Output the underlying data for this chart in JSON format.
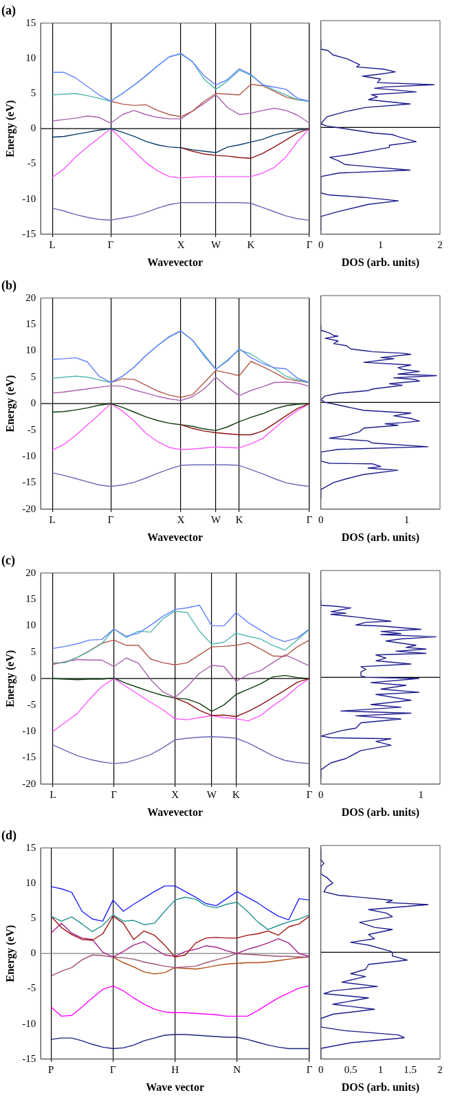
{
  "chart_data": [
    {
      "type": "line",
      "title": "(a)",
      "xlabel": "Wavevector",
      "ylabel": "Energy (eV)",
      "categories": [
        null,
        "L",
        null,
        null,
        null,
        null,
        "Γ",
        null,
        null,
        null,
        null,
        null,
        "X",
        null,
        null,
        "W",
        null,
        null,
        "K",
        null,
        null,
        null,
        null,
        "Γ"
      ],
      "ylim": [
        -15,
        15
      ],
      "yticks": [
        -15,
        -10,
        -5,
        0,
        5,
        10,
        15
      ],
      "grid": "x",
      "marker": "none",
      "ref_lines": [
        {
          "axis": "y",
          "value": 0,
          "color": "#000000"
        }
      ],
      "series": [
        {
          "color": "#6080ff",
          "values": [
            null,
            8.0,
            8.0,
            7.2,
            6.0,
            4.8,
            3.9,
            5.0,
            6.2,
            7.5,
            8.9,
            10.2,
            10.7,
            9.5,
            7.5,
            6.2,
            7.0,
            8.5,
            7.7,
            6.2,
            5.9,
            5.6,
            4.3,
            3.9
          ]
        },
        {
          "color": "#50b8b0",
          "values": [
            null,
            4.8,
            4.9,
            5.0,
            4.7,
            4.3,
            3.9,
            5.0,
            6.2,
            7.5,
            8.9,
            10.2,
            10.6,
            9.5,
            7.0,
            5.6,
            6.8,
            8.3,
            7.6,
            6.3,
            5.5,
            4.8,
            4.1,
            3.9
          ]
        },
        {
          "color": "#b05848",
          "values": [
            null,
            null,
            null,
            null,
            null,
            null,
            3.9,
            3.5,
            3.3,
            3.4,
            2.6,
            2.0,
            1.7,
            2.5,
            3.9,
            5.0,
            4.9,
            4.8,
            6.3,
            6.1,
            5.3,
            4.5,
            4.1,
            3.9
          ]
        },
        {
          "color": "#a860b0",
          "values": [
            null,
            1.1,
            1.3,
            1.5,
            1.8,
            1.6,
            0.8,
            2.0,
            2.6,
            2.0,
            1.6,
            1.4,
            1.4,
            2.5,
            3.6,
            4.8,
            3.0,
            2.0,
            2.2,
            2.6,
            2.9,
            2.6,
            1.9,
            0.8
          ]
        },
        {
          "color": "#8b1010",
          "values": [
            null,
            null,
            null,
            null,
            null,
            null,
            null,
            null,
            null,
            null,
            null,
            null,
            -2.7,
            -3.2,
            -3.6,
            -3.8,
            -3.9,
            -4.1,
            -4.2,
            -3.5,
            -2.6,
            -1.6,
            -0.6,
            0
          ]
        },
        {
          "color": "#0a3a66",
          "values": [
            null,
            -1.2,
            -1.1,
            -0.8,
            -0.5,
            -0.2,
            0,
            -0.5,
            -1.1,
            -1.8,
            -2.3,
            -2.6,
            -2.7,
            -3.0,
            -3.2,
            -3.4,
            -2.6,
            -2.3,
            -1.9,
            -1.5,
            -0.9,
            -0.5,
            -0.2,
            0
          ]
        },
        {
          "color": "#ff55ff",
          "values": [
            null,
            -6.9,
            -5.7,
            -4.0,
            -2.6,
            -1.3,
            0,
            -1.6,
            -3.2,
            -4.8,
            -6.0,
            -6.8,
            -7.0,
            -6.9,
            -6.8,
            -6.8,
            -6.8,
            -6.8,
            -6.8,
            -6.3,
            -5.5,
            -4.0,
            -1.8,
            0
          ]
        },
        {
          "color": "#6868b8",
          "values": [
            null,
            -11.3,
            -11.7,
            -12.2,
            -12.6,
            -12.9,
            -13.0,
            -12.7,
            -12.4,
            -11.9,
            -11.3,
            -10.8,
            -10.5,
            -10.5,
            -10.5,
            -10.5,
            -10.5,
            -10.5,
            -10.6,
            -11.2,
            -11.8,
            -12.4,
            -12.8,
            -13.0
          ]
        }
      ]
    },
    {
      "type": "line",
      "xlabel": "DOS (arb. units)",
      "xlim": [
        0,
        2
      ],
      "xticks": [
        0,
        1,
        2
      ],
      "ylim": [
        -15,
        15
      ],
      "tick_labels": "x",
      "marker": "none",
      "ref_lines": [
        {
          "axis": "y",
          "value": 0,
          "color": "#000000"
        }
      ],
      "series": [
        {
          "color": "#1a1a8c",
          "x": [
            0,
            0,
            0.12,
            0.2,
            0.45,
            0.65,
            0.6,
            1.05,
            1.25,
            1.0,
            0.7,
            1.0,
            0.95,
            1.9,
            1.1,
            0.9,
            1.6,
            0.85,
            0.95,
            0.8,
            1.5,
            0.75,
            0.4,
            0.1,
            0,
            0.1,
            0.5,
            0.9,
            1.2,
            1.3,
            1.6,
            1.15,
            1.15,
            0.5,
            0.15,
            0.3,
            0.4,
            0.8,
            1.5,
            0.3,
            0,
            0,
            0.15,
            0.7,
            1.3,
            0.8,
            0.3,
            0,
            0
          ],
          "values": [
            12.2,
            11,
            10.8,
            10.2,
            9.6,
            8.8,
            8.5,
            8.2,
            7.8,
            7.5,
            7.2,
            6.8,
            6.3,
            6.0,
            5.7,
            5.5,
            5.0,
            4.6,
            4.3,
            3.9,
            3.3,
            2.8,
            2.2,
            1.5,
            0.5,
            0.2,
            -0.3,
            -0.8,
            -1.0,
            -1.3,
            -2.0,
            -2.5,
            -2.8,
            -3.8,
            -4.2,
            -4.7,
            -5.2,
            -5.5,
            -6.0,
            -6.4,
            -6.9,
            -9.2,
            -9.5,
            -9.8,
            -10.3,
            -10.8,
            -11.8,
            -12.5,
            -14.5
          ]
        }
      ]
    },
    {
      "type": "line",
      "title": "(b)",
      "xlabel": "Wavevector",
      "ylabel": "Energy (eV)",
      "categories": [
        null,
        "L",
        null,
        null,
        null,
        null,
        "Γ",
        null,
        null,
        null,
        null,
        null,
        "X",
        null,
        null,
        "W",
        null,
        "K",
        null,
        null,
        null,
        null,
        null,
        "Γ"
      ],
      "ylim": [
        -20,
        20
      ],
      "yticks": [
        -20,
        -15,
        -10,
        -5,
        0,
        5,
        10,
        15,
        20
      ],
      "grid": "x",
      "marker": "none",
      "ref_lines": [
        {
          "axis": "y",
          "value": 0,
          "color": "#000000"
        }
      ],
      "series": [
        {
          "color": "#6080ff",
          "values": [
            null,
            8.4,
            8.5,
            8.7,
            7.9,
            5.2,
            4.0,
            5.2,
            6.9,
            9.1,
            11.0,
            12.7,
            13.8,
            12.0,
            9.0,
            6.5,
            8.1,
            10.4,
            8.7,
            7.6,
            6.8,
            6.6,
            4.8,
            4.0
          ]
        },
        {
          "color": "#50b8b0",
          "values": [
            null,
            4.8,
            5.0,
            5.2,
            5.0,
            4.5,
            4.0,
            5.2,
            6.9,
            9.1,
            11.0,
            12.6,
            13.7,
            12.0,
            9.3,
            6.5,
            8.3,
            10.2,
            9.4,
            8.0,
            6.7,
            5.2,
            4.5,
            4.0
          ]
        },
        {
          "color": "#b05848",
          "values": [
            null,
            null,
            null,
            null,
            null,
            null,
            4.0,
            4.7,
            4.6,
            3.5,
            2.4,
            1.6,
            1.2,
            1.7,
            4.0,
            6.3,
            5.8,
            5.3,
            8.0,
            7.0,
            5.9,
            4.7,
            4.3,
            4.0
          ]
        },
        {
          "color": "#a860b0",
          "values": [
            null,
            2.0,
            2.2,
            2.5,
            2.8,
            3.1,
            3.4,
            3.3,
            2.6,
            2.0,
            1.4,
            0.9,
            0.6,
            1.3,
            2.8,
            5.0,
            3.1,
            1.5,
            2.5,
            3.2,
            4.0,
            4.1,
            3.9,
            3.3
          ]
        },
        {
          "color": "#8b1010",
          "values": [
            null,
            null,
            null,
            null,
            null,
            null,
            null,
            null,
            null,
            null,
            null,
            null,
            -4.0,
            -4.7,
            -5.2,
            -5.5,
            -5.7,
            -5.9,
            -5.9,
            -5.2,
            -3.8,
            -2.3,
            -0.9,
            0
          ]
        },
        {
          "color": "#0a3a0a",
          "values": [
            null,
            -1.6,
            -1.5,
            -1.2,
            -0.8,
            -0.3,
            0,
            -0.7,
            -1.6,
            -2.5,
            -3.2,
            -3.7,
            -4.0,
            -4.3,
            -4.8,
            -5.1,
            -4.4,
            -3.4,
            -2.6,
            -1.9,
            -1.0,
            -0.4,
            -0.1,
            0
          ]
        },
        {
          "color": "#ff55ff",
          "values": [
            null,
            -8.8,
            -7.7,
            -6.0,
            -4.0,
            -2.1,
            0,
            -1.4,
            -3.3,
            -5.6,
            -7.2,
            -8.3,
            -8.7,
            -8.6,
            -8.4,
            -8.2,
            -8.3,
            -8.4,
            -7.6,
            -6.6,
            -4.7,
            -2.8,
            -1.3,
            0
          ]
        },
        {
          "color": "#6868b8",
          "values": [
            null,
            -13.1,
            -13.6,
            -14.2,
            -14.8,
            -15.4,
            -15.7,
            -15.4,
            -14.9,
            -14.1,
            -13.2,
            -12.4,
            -11.7,
            -11.6,
            -11.6,
            -11.6,
            -11.6,
            -11.7,
            -12.5,
            -13.3,
            -14.2,
            -15.0,
            -15.4,
            -15.7
          ]
        }
      ]
    },
    {
      "type": "line",
      "xlabel": "DOS (arb. units)",
      "xlim": [
        0,
        1.39
      ],
      "xticks": [
        0,
        1
      ],
      "ylim": [
        -20,
        20
      ],
      "tick_labels": "x",
      "marker": "none",
      "ref_lines": [
        {
          "axis": "y",
          "value": 0,
          "color": "#000000"
        }
      ],
      "series": [
        {
          "color": "#1a1a8c",
          "x": [
            0,
            0,
            0.1,
            0.15,
            0.2,
            0.05,
            0.2,
            0.15,
            0.3,
            0.35,
            0.5,
            0.6,
            0.95,
            1.05,
            0.7,
            0.85,
            0.5,
            1.05,
            0.9,
            0.95,
            1.15,
            0.9,
            1.35,
            0.85,
            1.1,
            1.15,
            0.8,
            0.95,
            0.6,
            0.55,
            0.2,
            0.05,
            0,
            0.05,
            0.15,
            0.35,
            0.5,
            1.05,
            0.85,
            1.05,
            1.15,
            0.95,
            0.75,
            0.9,
            0.5,
            0.45,
            0.3,
            0.1,
            0.55,
            0.6,
            1.25,
            0.2,
            0,
            0,
            0.1,
            0.6,
            0.7,
            0.55,
            0.9,
            0.5,
            0.3,
            0.15,
            0,
            0
          ],
          "values": [
            14.5,
            13.5,
            13.0,
            12.5,
            12.4,
            12.0,
            11.5,
            11.0,
            10.6,
            10.0,
            9.7,
            9.5,
            9.2,
            9.0,
            8.4,
            8.2,
            7.5,
            7.0,
            6.5,
            6.2,
            5.8,
            5.3,
            5.0,
            4.6,
            4.3,
            4.0,
            3.5,
            3.2,
            2.5,
            2.2,
            1.7,
            1.2,
            0.5,
            0,
            -0.3,
            -1.0,
            -1.5,
            -2.0,
            -2.5,
            -3.0,
            -3.5,
            -3.8,
            -4.0,
            -4.3,
            -4.8,
            -5.5,
            -6.2,
            -6.7,
            -7.2,
            -7.6,
            -8.3,
            -8.8,
            -9.3,
            -11.0,
            -11.4,
            -11.5,
            -12.0,
            -12.3,
            -12.7,
            -13.5,
            -14.3,
            -15.0,
            -16.3,
            -18
          ]
        }
      ]
    },
    {
      "type": "line",
      "title": "(c)",
      "xlabel": "Wavevector",
      "ylabel": "Energy (eV)",
      "categories": [
        null,
        "L",
        null,
        null,
        null,
        null,
        "Γ",
        null,
        null,
        null,
        null,
        "X",
        null,
        null,
        "W",
        null,
        "K",
        null,
        null,
        null,
        null,
        null,
        "Γ"
      ],
      "ylim": [
        -20,
        20
      ],
      "yticks": [
        -20,
        -15,
        -10,
        -5,
        0,
        5,
        10,
        15,
        20
      ],
      "grid": "x",
      "marker": "none",
      "ref_lines": [
        {
          "axis": "y",
          "value": 0,
          "color": "#000000"
        }
      ],
      "series": [
        {
          "color": "#6080ff",
          "values": [
            null,
            5.7,
            6.1,
            6.6,
            7.3,
            7.4,
            9.4,
            8.0,
            8.6,
            10.1,
            11.8,
            13.1,
            13.4,
            13.9,
            10.0,
            10.0,
            12.5,
            10.6,
            9.2,
            7.8,
            7.0,
            7.7,
            9.4
          ]
        },
        {
          "color": "#50b8b0",
          "values": [
            null,
            3.0,
            3.0,
            4.0,
            5.2,
            6.6,
            9.4,
            7.8,
            9.0,
            8.8,
            11.3,
            12.8,
            12.5,
            9.0,
            6.5,
            6.9,
            8.6,
            8.0,
            7.5,
            6.3,
            5.4,
            7.3,
            9.3
          ]
        },
        {
          "color": "#b05848",
          "values": [
            null,
            2.8,
            3.1,
            4.0,
            5.3,
            6.7,
            7.3,
            6.3,
            6.3,
            3.7,
            3.0,
            2.6,
            3.0,
            4.5,
            6.0,
            6.1,
            6.3,
            6.8,
            5.6,
            4.3,
            4.2,
            6.0,
            7.3
          ]
        },
        {
          "color": "#a860b0",
          "values": [
            null,
            2.7,
            3.2,
            3.6,
            3.5,
            3.5,
            2.3,
            3.9,
            2.9,
            -0.2,
            -2.5,
            -3.6,
            -1.5,
            1.0,
            2.5,
            2.3,
            -0.5,
            0.8,
            1.5,
            3.0,
            4.5,
            3.5,
            2.4
          ]
        },
        {
          "color": "#8b1010",
          "values": [
            null,
            null,
            null,
            null,
            null,
            null,
            null,
            null,
            null,
            null,
            null,
            -3.7,
            -4.6,
            -6.0,
            -7.0,
            -6.9,
            -7.2,
            -6.2,
            -5.0,
            -3.6,
            -2.2,
            -0.7,
            0
          ]
        },
        {
          "color": "#0a3a0a",
          "values": [
            null,
            0,
            -0.1,
            -0.2,
            -0.1,
            -0.1,
            0.1,
            -0.9,
            -1.7,
            -2.5,
            -3.2,
            -3.7,
            -3.9,
            -4.7,
            -6.2,
            -5.0,
            -3.0,
            -2.0,
            -1.0,
            0.3,
            0.6,
            0.2,
            0
          ]
        },
        {
          "color": "#ff55ff",
          "values": [
            null,
            -10.0,
            -8.3,
            -6.6,
            -3.9,
            -1.5,
            0,
            -1.5,
            -3.0,
            -4.5,
            -5.9,
            -7.6,
            -7.8,
            -7.4,
            -7.0,
            -7.4,
            -7.6,
            -8.0,
            -7.0,
            -5.2,
            -3.6,
            -1.6,
            0
          ]
        },
        {
          "color": "#6868b8",
          "values": [
            null,
            -12.6,
            -13.6,
            -14.6,
            -15.3,
            -15.8,
            -16.1,
            -15.9,
            -15.2,
            -14.4,
            -13.1,
            -11.6,
            -11.3,
            -11.1,
            -11.0,
            -11.1,
            -11.3,
            -12.2,
            -13.4,
            -14.6,
            -15.5,
            -15.9,
            -16.1
          ]
        }
      ]
    },
    {
      "type": "line",
      "xlabel": "DOS (arb. units)",
      "xlim": [
        0,
        1.19
      ],
      "xticks": [
        0,
        1
      ],
      "ylim": [
        -20,
        20
      ],
      "tick_labels": "x",
      "marker": "none",
      "ref_lines": [
        {
          "axis": "y",
          "value": 0,
          "color": "#000000"
        }
      ],
      "series": [
        {
          "color": "#1a1a8c",
          "x": [
            0,
            0,
            0.15,
            0.3,
            0.1,
            0.25,
            0.1,
            0.35,
            0.7,
            0.45,
            0.35,
            0.6,
            1.0,
            0.6,
            0.8,
            0.6,
            1.15,
            0.8,
            0.65,
            0.95,
            0.85,
            1.05,
            0.75,
            1.05,
            0.55,
            0.65,
            0.55,
            0.9,
            0.4,
            0.45,
            0.4,
            0.4,
            0.45,
            0.98,
            0.5,
            0.85,
            0.6,
            0.98,
            0.55,
            0.9,
            0.5,
            0.8,
            0.2,
            0.9,
            0.35,
            0.8,
            0.4,
            0.35,
            0.2,
            0,
            0.1,
            0.7,
            0.55,
            0.7,
            0.4,
            0.25,
            0.1,
            0,
            0
          ],
          "values": [
            14.5,
            13.5,
            13.3,
            13.0,
            12.3,
            12.0,
            11.8,
            11.3,
            10.5,
            10.3,
            9.8,
            9.6,
            9.0,
            8.6,
            8.2,
            8.0,
            7.6,
            7.2,
            6.8,
            6.0,
            5.6,
            5.3,
            4.9,
            4.5,
            4.2,
            3.6,
            3.1,
            2.5,
            2.0,
            1.5,
            1.0,
            0.3,
            0,
            -0.2,
            -1.0,
            -1.5,
            -2.2,
            -2.8,
            -3.2,
            -4.3,
            -5.1,
            -5.6,
            -6.3,
            -6.7,
            -7.2,
            -7.8,
            -8.5,
            -9.5,
            -10.0,
            -11.0,
            -11.3,
            -11.5,
            -12.0,
            -12.7,
            -13.7,
            -15.2,
            -16.0,
            -17.3,
            -19
          ]
        }
      ]
    },
    {
      "type": "line",
      "title": "(d)",
      "xlabel": "Wave vector",
      "ylabel": "Energy (eV)",
      "categories": [
        null,
        "P",
        null,
        null,
        null,
        null,
        null,
        "Γ",
        null,
        null,
        null,
        null,
        null,
        "H",
        null,
        null,
        null,
        null,
        null,
        "N",
        null,
        null,
        null,
        null,
        null,
        null,
        "Γ"
      ],
      "ylim": [
        -15,
        15
      ],
      "yticks": [
        -15,
        -10,
        -5,
        0,
        5,
        10,
        15
      ],
      "grid": "x",
      "marker": "none",
      "ref_lines": [
        {
          "axis": "y",
          "value": 0,
          "color": "#808080"
        }
      ],
      "series": [
        {
          "color": "#2020ff",
          "values": [
            null,
            9.5,
            9.2,
            8.7,
            6.0,
            4.9,
            4.6,
            7.6,
            6.0,
            7.0,
            7.9,
            8.8,
            9.6,
            9.6,
            8.8,
            8.0,
            7.1,
            6.8,
            7.8,
            8.8,
            8.0,
            7.2,
            6.2,
            5.3,
            4.8,
            7.8,
            7.6
          ]
        },
        {
          "color": "#209090",
          "values": [
            null,
            5.3,
            4.6,
            5.2,
            4.2,
            3.1,
            4.0,
            5.5,
            4.6,
            4.7,
            4.1,
            4.3,
            6.0,
            7.6,
            8.0,
            7.7,
            6.8,
            6.5,
            7.0,
            7.3,
            6.0,
            4.5,
            3.4,
            4.0,
            4.5,
            4.9,
            5.5
          ]
        },
        {
          "color": "#a01010",
          "values": [
            null,
            5.3,
            3.7,
            2.7,
            2.0,
            1.9,
            2.8,
            5.3,
            4.3,
            2.0,
            3.2,
            2.6,
            1.2,
            -0.5,
            -0.2,
            1.5,
            2.2,
            2.3,
            2.2,
            2.2,
            2.6,
            2.8,
            3.2,
            2.6,
            3.8,
            4.2,
            5.3
          ]
        },
        {
          "color": "#a0208a",
          "values": [
            null,
            2.9,
            4.3,
            2.9,
            2.2,
            2.0,
            0.2,
            -0.5,
            0.3,
            1.2,
            1.7,
            0.7,
            -0.2,
            -0.4,
            0.3,
            0.6,
            1.1,
            0.9,
            0.4,
            0,
            0.6,
            1.0,
            1.5,
            2.1,
            1.5,
            0,
            -0.4
          ]
        },
        {
          "color": "#a05070",
          "values": [
            null,
            -3.2,
            -2.5,
            -2.0,
            -0.9,
            -0.2,
            -0.3,
            -0.5,
            -0.6,
            -0.8,
            -1.2,
            -1.5,
            -1.8,
            -2.0,
            -1.9,
            -1.8,
            -1.3,
            -0.9,
            -0.5,
            0,
            -0.1,
            -0.2,
            -0.3,
            -0.4,
            -0.4,
            -0.5,
            -0.5
          ]
        },
        {
          "color": "#b04a10",
          "values": [
            null,
            null,
            null,
            null,
            null,
            null,
            null,
            -0.5,
            -1.3,
            -1.9,
            -2.6,
            -2.9,
            -2.7,
            -2.0,
            -2.1,
            -2.2,
            -2.0,
            -1.7,
            -1.5,
            -1.4,
            -1.3,
            -1.3,
            -1.2,
            -1.0,
            -0.8,
            -0.6,
            -0.5
          ]
        },
        {
          "color": "#ff00ff",
          "values": [
            null,
            -7.6,
            -8.9,
            -8.8,
            -7.6,
            -6.3,
            -5.1,
            -4.6,
            -5.3,
            -6.3,
            -7.2,
            -7.9,
            -8.3,
            -8.4,
            -8.4,
            -8.5,
            -8.6,
            -8.7,
            -8.9,
            -8.9,
            -8.9,
            -8.1,
            -7.2,
            -6.3,
            -5.6,
            -4.9,
            -4.6
          ]
        },
        {
          "color": "#1a237e",
          "values": [
            null,
            -12.2,
            -12.0,
            -12.0,
            -12.4,
            -12.9,
            -13.3,
            -13.5,
            -13.4,
            -13.0,
            -12.4,
            -12.0,
            -11.6,
            -11.5,
            -11.5,
            -11.6,
            -11.7,
            -11.8,
            -11.9,
            -11.9,
            -12.2,
            -12.6,
            -13.0,
            -13.3,
            -13.5,
            -13.5,
            -13.5
          ]
        }
      ]
    },
    {
      "type": "line",
      "xlabel": "DOS (arb. units)",
      "xlim": [
        0,
        2
      ],
      "xticks": [
        0,
        0.5,
        1,
        1.5,
        2
      ],
      "ylim": [
        -15,
        15
      ],
      "tick_labels": "x",
      "marker": "none",
      "ref_lines": [
        {
          "axis": "y",
          "value": 0,
          "color": "#000000"
        }
      ],
      "series": [
        {
          "color": "#1a1a8c",
          "x": [
            0,
            0,
            0.05,
            0,
            0,
            0.1,
            0.2,
            0.1,
            0.05,
            0.3,
            0.7,
            1.2,
            1.1,
            1.8,
            0.8,
            1.1,
            1.2,
            0.65,
            0.9,
            1.2,
            0.8,
            0.9,
            0.5,
            0.8,
            1.15,
            1.2,
            1.2,
            1.45,
            0.8,
            0.75,
            0.5,
            0.75,
            0.35,
            0.95,
            0.2,
            0.05,
            0.8,
            0.2,
            0.9,
            0.2,
            0,
            0,
            0.4,
            1.3,
            1.4,
            0.5,
            0,
            0
          ],
          "values": [
            14.5,
            13,
            12.5,
            12,
            11,
            10.5,
            9.7,
            9.2,
            8.5,
            8.0,
            7.7,
            7.3,
            7.0,
            6.7,
            6.0,
            5.5,
            5.0,
            4.2,
            3.5,
            3.2,
            2.5,
            1.9,
            1.4,
            1.0,
            0.2,
            0,
            -0.5,
            -1.1,
            -1.7,
            -2.4,
            -3.0,
            -3.4,
            -4.2,
            -4.8,
            -5.4,
            -5.8,
            -6.4,
            -7.3,
            -8.0,
            -8.7,
            -9.3,
            -10.5,
            -11.0,
            -11.6,
            -12.0,
            -12.7,
            -13.5,
            -15
          ]
        }
      ]
    }
  ]
}
